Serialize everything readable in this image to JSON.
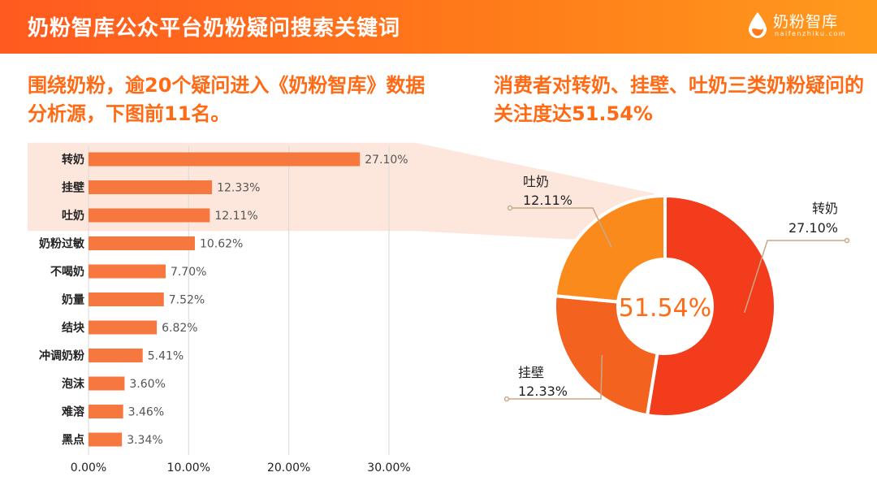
{
  "header": {
    "title": "奶粉智库公众平台奶粉疑问搜索关键词",
    "logo_name": "奶粉智库",
    "logo_sub": "naifenzhiku.com"
  },
  "left_caption": "围绕奶粉，逾20个疑问进入《奶粉智库》数据分析源，下图前11名。",
  "right_caption": "消费者对转奶、挂壁、吐奶三类奶粉疑问的关注度达51.54%",
  "colors": {
    "accent": "#ff6a14",
    "bar": "#f7783e",
    "highlight_band": "#fde3d6",
    "donut_zhuannai": "#f23c1c",
    "donut_guabi": "#f4621f",
    "donut_tunai": "#fb8a1d",
    "text_dark": "#222222",
    "text_gray": "#555555"
  },
  "chart_data": [
    {
      "type": "bar",
      "orientation": "horizontal",
      "categories": [
        "转奶",
        "挂壁",
        "吐奶",
        "奶粉过敏",
        "不喝奶",
        "奶量",
        "结块",
        "冲调奶粉",
        "泡沫",
        "难溶",
        "黑点"
      ],
      "values": [
        27.1,
        12.33,
        12.11,
        10.62,
        7.7,
        7.52,
        6.82,
        5.41,
        3.6,
        3.46,
        3.34
      ],
      "value_labels": [
        "27.10%",
        "12.33%",
        "12.11%",
        "10.62%",
        "7.70%",
        "7.52%",
        "6.82%",
        "5.41%",
        "3.60%",
        "3.46%",
        "3.34%"
      ],
      "xlim": [
        0,
        30
      ],
      "xticks": [
        0,
        10,
        20,
        30
      ],
      "xtick_labels": [
        "0.00%",
        "10.00%",
        "20.00%",
        "30.00%"
      ],
      "grid": true,
      "highlighted_categories": [
        "转奶",
        "挂壁",
        "吐奶"
      ]
    },
    {
      "type": "pie",
      "donut": true,
      "center_label": "51.54%",
      "slices": [
        {
          "label": "转奶",
          "value": 27.1,
          "value_label": "27.10%"
        },
        {
          "label": "挂壁",
          "value": 12.33,
          "value_label": "12.33%"
        },
        {
          "label": "吐奶",
          "value": 12.11,
          "value_label": "12.11%"
        }
      ]
    }
  ]
}
